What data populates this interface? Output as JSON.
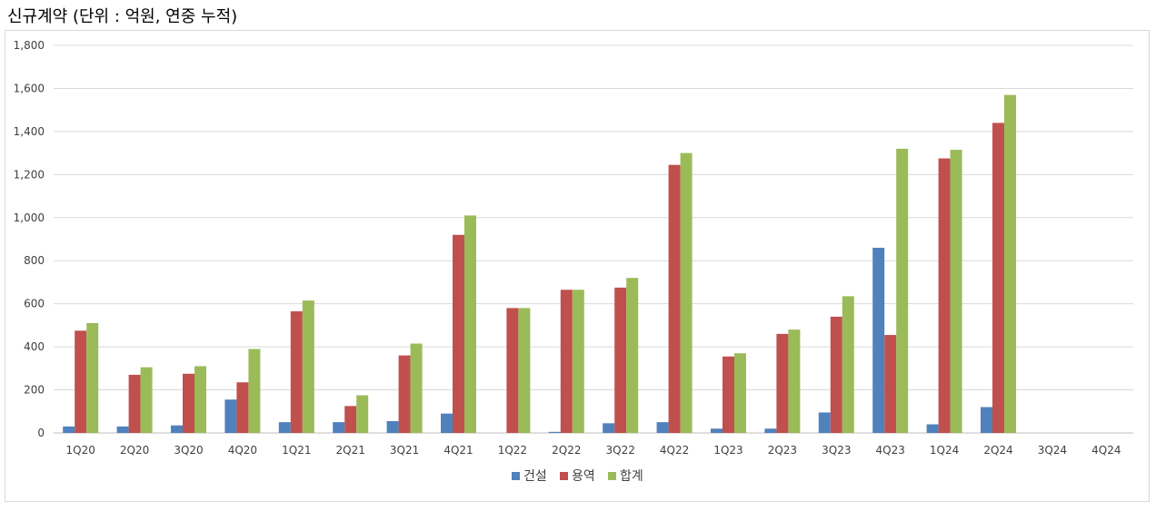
{
  "title": "신규계약 (단위 : 억원, 연중 누적)",
  "chart_data": {
    "type": "bar",
    "title": "신규계약 (단위 : 억원, 연중 누적)",
    "categories": [
      "1Q20",
      "2Q20",
      "3Q20",
      "4Q20",
      "1Q21",
      "2Q21",
      "3Q21",
      "4Q21",
      "1Q22",
      "2Q22",
      "3Q22",
      "4Q22",
      "1Q23",
      "2Q23",
      "3Q23",
      "4Q23",
      "1Q24",
      "2Q24",
      "3Q24",
      "4Q24"
    ],
    "series": [
      {
        "name": "건설",
        "color": "#4f81bd",
        "values": [
          30,
          30,
          35,
          155,
          50,
          50,
          55,
          90,
          0,
          5,
          45,
          50,
          20,
          20,
          95,
          860,
          40,
          120,
          null,
          null
        ]
      },
      {
        "name": "용역",
        "color": "#c0504d",
        "values": [
          475,
          270,
          275,
          235,
          565,
          125,
          360,
          920,
          580,
          665,
          675,
          1245,
          355,
          460,
          540,
          455,
          1275,
          1440,
          null,
          null
        ]
      },
      {
        "name": "합계",
        "color": "#9bbb59",
        "values": [
          510,
          305,
          310,
          390,
          615,
          175,
          415,
          1010,
          580,
          665,
          720,
          1300,
          370,
          480,
          635,
          1320,
          1315,
          1570,
          null,
          null
        ]
      }
    ],
    "ylim": [
      0,
      1800
    ],
    "yticks": [
      0,
      200,
      400,
      600,
      800,
      1000,
      1200,
      1400,
      1600,
      1800
    ],
    "ytick_labels": [
      "0",
      "200",
      "400",
      "600",
      "800",
      "1,000",
      "1,200",
      "1,400",
      "1,600",
      "1,800"
    ],
    "grid": true,
    "legend_position": "bottom"
  }
}
